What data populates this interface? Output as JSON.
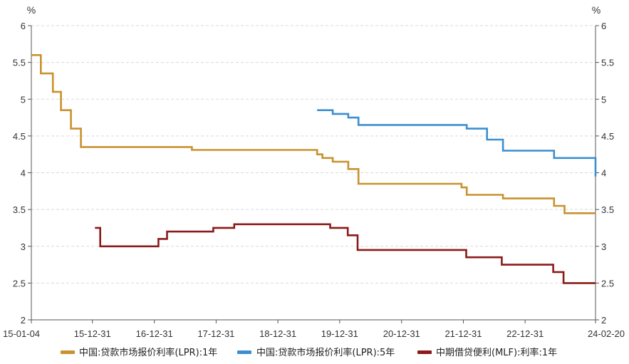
{
  "chart_data": {
    "type": "line",
    "y_unit_left": "%",
    "y_unit_right": "%",
    "ylim": [
      2,
      6
    ],
    "y_ticks": [
      {
        "value": 6,
        "label": "6"
      },
      {
        "value": 5.5,
        "label": "5.5"
      },
      {
        "value": 5,
        "label": "5"
      },
      {
        "value": 4.5,
        "label": "4.5"
      },
      {
        "value": 4,
        "label": "4"
      },
      {
        "value": 3.5,
        "label": "3.5"
      },
      {
        "value": 3,
        "label": "3"
      },
      {
        "value": 2.5,
        "label": "2.5"
      },
      {
        "value": 2,
        "label": "2"
      }
    ],
    "x_range": [
      "2015-01-04",
      "2024-02-20"
    ],
    "x_ticks": [
      {
        "date": "2015-01-04",
        "label": "15-01-04"
      },
      {
        "date": "2015-12-31",
        "label": "15-12-31"
      },
      {
        "date": "2016-12-31",
        "label": "16-12-31"
      },
      {
        "date": "2017-12-31",
        "label": "17-12-31"
      },
      {
        "date": "2018-12-31",
        "label": "18-12-31"
      },
      {
        "date": "2019-12-31",
        "label": "19-12-31"
      },
      {
        "date": "2020-12-31",
        "label": "20-12-31"
      },
      {
        "date": "2021-12-31",
        "label": "21-12-31"
      },
      {
        "date": "2022-12-31",
        "label": "22-12-31"
      },
      {
        "date": "2024-02-20",
        "label": "24-02-20"
      }
    ],
    "grid": "horizontal dashed",
    "legend_position": "bottom",
    "series": [
      {
        "name": "中国:贷款市场报价利率(LPR):1年",
        "color": "#c8922e",
        "points": [
          [
            "2015-01-04",
            5.6
          ],
          [
            "2015-03-01",
            5.35
          ],
          [
            "2015-05-11",
            5.1
          ],
          [
            "2015-06-28",
            4.85
          ],
          [
            "2015-08-26",
            4.6
          ],
          [
            "2015-10-24",
            4.35
          ],
          [
            "2017-08-10",
            4.31
          ],
          [
            "2019-07-20",
            4.31
          ],
          [
            "2019-08-20",
            4.25
          ],
          [
            "2019-09-20",
            4.2
          ],
          [
            "2019-11-20",
            4.15
          ],
          [
            "2020-02-20",
            4.05
          ],
          [
            "2020-04-20",
            3.85
          ],
          [
            "2021-12-20",
            3.8
          ],
          [
            "2022-01-20",
            3.7
          ],
          [
            "2022-08-22",
            3.65
          ],
          [
            "2023-06-20",
            3.55
          ],
          [
            "2023-08-21",
            3.45
          ],
          [
            "2024-02-20",
            3.45
          ]
        ]
      },
      {
        "name": "中国:贷款市场报价利率(LPR):5年",
        "color": "#3d8ed1",
        "points": [
          [
            "2019-08-20",
            4.85
          ],
          [
            "2019-11-20",
            4.8
          ],
          [
            "2020-02-20",
            4.75
          ],
          [
            "2020-04-20",
            4.65
          ],
          [
            "2022-01-20",
            4.6
          ],
          [
            "2022-05-20",
            4.45
          ],
          [
            "2022-08-22",
            4.3
          ],
          [
            "2023-06-20",
            4.2
          ],
          [
            "2024-02-20",
            3.95
          ]
        ]
      },
      {
        "name": "中期借贷便利(MLF):利率:1年",
        "color": "#8b1a1a",
        "points": [
          [
            "2016-01-15",
            3.25
          ],
          [
            "2016-02-15",
            3.0
          ],
          [
            "2017-01-24",
            3.1
          ],
          [
            "2017-03-16",
            3.2
          ],
          [
            "2017-12-14",
            3.25
          ],
          [
            "2018-04-17",
            3.3
          ],
          [
            "2019-11-05",
            3.25
          ],
          [
            "2020-02-17",
            3.15
          ],
          [
            "2020-04-15",
            2.95
          ],
          [
            "2022-01-17",
            2.85
          ],
          [
            "2022-08-15",
            2.75
          ],
          [
            "2023-06-15",
            2.65
          ],
          [
            "2023-08-15",
            2.5
          ],
          [
            "2024-02-20",
            2.5
          ]
        ]
      }
    ]
  }
}
